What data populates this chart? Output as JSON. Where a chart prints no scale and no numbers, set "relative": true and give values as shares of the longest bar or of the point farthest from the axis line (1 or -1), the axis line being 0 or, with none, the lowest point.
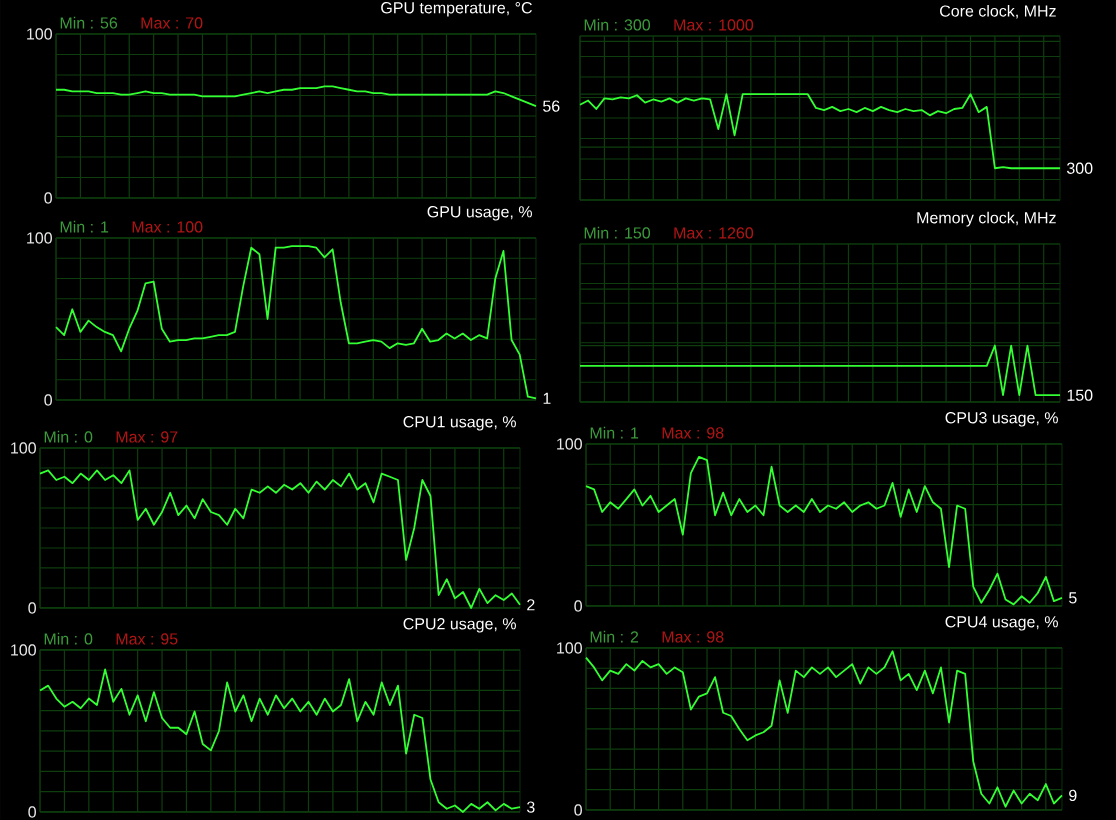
{
  "chart_data": [
    {
      "type": "line",
      "title": "GPU temperature, °C",
      "color": "#33ff33",
      "ylim": [
        0,
        100
      ],
      "yticks": [
        0,
        100
      ],
      "grid": true,
      "annotations": [
        "Min : 56",
        "Max : 70",
        "56"
      ],
      "categories": [
        null,
        null,
        null,
        null,
        null,
        null,
        null,
        null,
        null,
        null,
        null,
        null,
        null,
        null,
        null,
        null,
        null,
        null,
        null,
        null,
        null,
        null,
        null,
        null,
        null,
        null,
        null,
        null,
        null,
        null,
        null,
        null,
        null,
        null,
        null,
        null,
        null,
        null,
        null,
        null,
        null,
        null,
        null,
        null,
        null,
        null,
        null,
        null,
        null,
        null,
        null,
        null,
        null,
        null,
        null,
        null,
        null,
        null,
        null,
        null
      ],
      "values": [
        66,
        66,
        65,
        65,
        65,
        64,
        64,
        64,
        63,
        63,
        64,
        65,
        64,
        64,
        63,
        63,
        63,
        63,
        62,
        62,
        62,
        62,
        62,
        63,
        64,
        65,
        64,
        65,
        66,
        66,
        67,
        67,
        67,
        68,
        68,
        67,
        66,
        65,
        65,
        64,
        64,
        63,
        63,
        63,
        63,
        63,
        63,
        63,
        63,
        63,
        63,
        63,
        63,
        63,
        65,
        64,
        62,
        60,
        58,
        56
      ]
    },
    {
      "type": "line",
      "title": "Core clock, MHz",
      "color": "#33ff33",
      "relative": true,
      "grid": true,
      "annotations": [
        "Min : 300",
        "Max : 1000",
        "300"
      ],
      "categories": [
        null,
        null,
        null,
        null,
        null,
        null,
        null,
        null,
        null,
        null,
        null,
        null,
        null,
        null,
        null,
        null,
        null,
        null,
        null,
        null,
        null,
        null,
        null,
        null,
        null,
        null,
        null,
        null,
        null,
        null,
        null,
        null,
        null,
        null,
        null,
        null,
        null,
        null,
        null,
        null,
        null,
        null,
        null,
        null,
        null,
        null,
        null,
        null,
        null,
        null,
        null,
        null,
        null,
        null,
        null,
        null,
        null,
        null,
        null,
        null
      ],
      "values": [
        0.9,
        0.94,
        0.86,
        0.96,
        0.95,
        0.97,
        0.96,
        0.99,
        0.92,
        0.95,
        0.93,
        0.96,
        0.92,
        0.96,
        0.94,
        0.96,
        0.95,
        0.67,
        1,
        0.61,
        1,
        1,
        1,
        1,
        1,
        1,
        1,
        1,
        1,
        0.87,
        0.85,
        0.88,
        0.84,
        0.86,
        0.83,
        0.87,
        0.84,
        0.88,
        0.85,
        0.83,
        0.86,
        0.84,
        0.85,
        0.8,
        0.84,
        0.82,
        0.86,
        0.87,
        1,
        0.83,
        0.88,
        0.3,
        0.31,
        0.3,
        0.3,
        0.3,
        0.3,
        0.3,
        0.3,
        0.3
      ]
    },
    {
      "type": "line",
      "title": "GPU usage, %",
      "color": "#33ff33",
      "ylim": [
        0,
        100
      ],
      "yticks": [
        0,
        100
      ],
      "grid": true,
      "annotations": [
        "Min : 1",
        "Max : 100",
        "1"
      ],
      "categories": [
        null,
        null,
        null,
        null,
        null,
        null,
        null,
        null,
        null,
        null,
        null,
        null,
        null,
        null,
        null,
        null,
        null,
        null,
        null,
        null,
        null,
        null,
        null,
        null,
        null,
        null,
        null,
        null,
        null,
        null,
        null,
        null,
        null,
        null,
        null,
        null,
        null,
        null,
        null,
        null,
        null,
        null,
        null,
        null,
        null,
        null,
        null,
        null,
        null,
        null,
        null,
        null,
        null,
        null,
        null,
        null,
        null,
        null,
        null,
        null
      ],
      "values": [
        45,
        40,
        56,
        42,
        49,
        45,
        42,
        40,
        30,
        44,
        55,
        72,
        73,
        44,
        36,
        37,
        37,
        38,
        38,
        39,
        40,
        40,
        42,
        70,
        94,
        90,
        50,
        94,
        94,
        95,
        95,
        95,
        94,
        88,
        93,
        60,
        35,
        35,
        36,
        37,
        36,
        32,
        35,
        34,
        35,
        44,
        36,
        37,
        41,
        38,
        41,
        37,
        40,
        38,
        75,
        92,
        37,
        28,
        2,
        1
      ]
    },
    {
      "type": "line",
      "title": "Memory clock, MHz",
      "color": "#33ff33",
      "relative": true,
      "grid": true,
      "annotations": [
        "Min : 150",
        "Max : 1260",
        "150"
      ],
      "categories": [
        null,
        null,
        null,
        null,
        null,
        null,
        null,
        null,
        null,
        null,
        null,
        null,
        null,
        null,
        null,
        null,
        null,
        null,
        null,
        null,
        null,
        null,
        null,
        null,
        null,
        null,
        null,
        null,
        null,
        null,
        null,
        null,
        null,
        null,
        null,
        null,
        null,
        null,
        null,
        null,
        null,
        null,
        null,
        null,
        null,
        null,
        null,
        null,
        null,
        null,
        null,
        null,
        null,
        null,
        null,
        null,
        null,
        null,
        null,
        null
      ],
      "values": [
        0.64,
        0.64,
        0.64,
        0.64,
        0.64,
        0.64,
        0.64,
        0.64,
        0.64,
        0.64,
        0.64,
        0.64,
        0.64,
        0.64,
        0.64,
        0.64,
        0.64,
        0.64,
        0.64,
        0.64,
        0.64,
        0.64,
        0.64,
        0.64,
        0.64,
        0.64,
        0.64,
        0.64,
        0.64,
        0.64,
        0.64,
        0.64,
        0.64,
        0.64,
        0.64,
        0.64,
        0.64,
        0.64,
        0.64,
        0.64,
        0.64,
        0.64,
        0.64,
        0.64,
        0.64,
        0.64,
        0.64,
        0.64,
        0.64,
        0.64,
        0.64,
        1,
        0.12,
        1,
        0.12,
        1,
        0.12,
        0.12,
        0.12,
        0.12
      ]
    },
    {
      "type": "line",
      "title": "CPU1 usage, %",
      "color": "#33ff33",
      "ylim": [
        0,
        100
      ],
      "yticks": [
        0,
        100
      ],
      "grid": true,
      "annotations": [
        "Min : 0",
        "Max : 97",
        "2"
      ],
      "categories": [
        null,
        null,
        null,
        null,
        null,
        null,
        null,
        null,
        null,
        null,
        null,
        null,
        null,
        null,
        null,
        null,
        null,
        null,
        null,
        null,
        null,
        null,
        null,
        null,
        null,
        null,
        null,
        null,
        null,
        null,
        null,
        null,
        null,
        null,
        null,
        null,
        null,
        null,
        null,
        null,
        null,
        null,
        null,
        null,
        null,
        null,
        null,
        null,
        null,
        null,
        null,
        null,
        null,
        null,
        null,
        null,
        null,
        null,
        null,
        null
      ],
      "values": [
        84,
        86,
        80,
        82,
        78,
        84,
        80,
        86,
        80,
        83,
        78,
        86,
        55,
        62,
        52,
        60,
        72,
        58,
        64,
        56,
        68,
        60,
        58,
        52,
        62,
        56,
        74,
        72,
        76,
        72,
        77,
        74,
        78,
        72,
        79,
        74,
        80,
        76,
        84,
        74,
        78,
        66,
        84,
        82,
        80,
        30,
        50,
        80,
        70,
        8,
        18,
        6,
        10,
        0,
        12,
        3,
        8,
        5,
        9,
        2
      ]
    },
    {
      "type": "line",
      "title": "CPU3 usage, %",
      "color": "#33ff33",
      "ylim": [
        0,
        100
      ],
      "yticks": [
        0,
        100
      ],
      "grid": true,
      "annotations": [
        "Min : 1",
        "Max : 98",
        "5"
      ],
      "categories": [
        null,
        null,
        null,
        null,
        null,
        null,
        null,
        null,
        null,
        null,
        null,
        null,
        null,
        null,
        null,
        null,
        null,
        null,
        null,
        null,
        null,
        null,
        null,
        null,
        null,
        null,
        null,
        null,
        null,
        null,
        null,
        null,
        null,
        null,
        null,
        null,
        null,
        null,
        null,
        null,
        null,
        null,
        null,
        null,
        null,
        null,
        null,
        null,
        null,
        null,
        null,
        null,
        null,
        null,
        null,
        null,
        null,
        null,
        null,
        null
      ],
      "values": [
        74,
        72,
        58,
        64,
        60,
        66,
        72,
        62,
        68,
        58,
        62,
        66,
        44,
        82,
        92,
        90,
        56,
        70,
        56,
        66,
        58,
        62,
        56,
        86,
        62,
        58,
        62,
        58,
        66,
        58,
        62,
        60,
        64,
        58,
        62,
        64,
        60,
        62,
        76,
        55,
        72,
        58,
        74,
        64,
        60,
        24,
        62,
        60,
        12,
        2,
        10,
        20,
        4,
        1,
        6,
        2,
        8,
        18,
        3,
        5
      ]
    },
    {
      "type": "line",
      "title": "CPU2 usage, %",
      "color": "#33ff33",
      "ylim": [
        0,
        100
      ],
      "yticks": [
        0,
        100
      ],
      "grid": true,
      "annotations": [
        "Min : 0",
        "Max : 95",
        "3"
      ],
      "categories": [
        null,
        null,
        null,
        null,
        null,
        null,
        null,
        null,
        null,
        null,
        null,
        null,
        null,
        null,
        null,
        null,
        null,
        null,
        null,
        null,
        null,
        null,
        null,
        null,
        null,
        null,
        null,
        null,
        null,
        null,
        null,
        null,
        null,
        null,
        null,
        null,
        null,
        null,
        null,
        null,
        null,
        null,
        null,
        null,
        null,
        null,
        null,
        null,
        null,
        null,
        null,
        null,
        null,
        null,
        null,
        null,
        null,
        null,
        null,
        null
      ],
      "values": [
        75,
        78,
        70,
        65,
        68,
        64,
        70,
        66,
        88,
        68,
        76,
        60,
        72,
        56,
        74,
        58,
        52,
        52,
        48,
        62,
        42,
        38,
        50,
        80,
        62,
        72,
        56,
        70,
        60,
        72,
        64,
        70,
        62,
        68,
        60,
        70,
        62,
        66,
        82,
        56,
        68,
        60,
        80,
        66,
        78,
        36,
        60,
        58,
        20,
        6,
        2,
        4,
        0,
        5,
        2,
        6,
        1,
        5,
        2,
        3
      ]
    },
    {
      "type": "line",
      "title": "CPU4 usage, %",
      "color": "#33ff33",
      "ylim": [
        0,
        100
      ],
      "yticks": [
        0,
        100
      ],
      "grid": true,
      "annotations": [
        "Min : 2",
        "Max : 98",
        "9"
      ],
      "categories": [
        null,
        null,
        null,
        null,
        null,
        null,
        null,
        null,
        null,
        null,
        null,
        null,
        null,
        null,
        null,
        null,
        null,
        null,
        null,
        null,
        null,
        null,
        null,
        null,
        null,
        null,
        null,
        null,
        null,
        null,
        null,
        null,
        null,
        null,
        null,
        null,
        null,
        null,
        null,
        null,
        null,
        null,
        null,
        null,
        null,
        null,
        null,
        null,
        null,
        null,
        null,
        null,
        null,
        null,
        null,
        null,
        null,
        null,
        null,
        null
      ],
      "values": [
        94,
        88,
        80,
        86,
        84,
        90,
        86,
        92,
        88,
        90,
        84,
        88,
        85,
        62,
        70,
        72,
        82,
        60,
        58,
        50,
        43,
        46,
        48,
        52,
        80,
        60,
        86,
        82,
        88,
        84,
        88,
        82,
        86,
        90,
        78,
        88,
        84,
        88,
        98,
        80,
        84,
        74,
        86,
        72,
        88,
        54,
        86,
        84,
        30,
        10,
        4,
        14,
        2,
        12,
        4,
        10,
        6,
        16,
        4,
        9
      ]
    }
  ]
}
